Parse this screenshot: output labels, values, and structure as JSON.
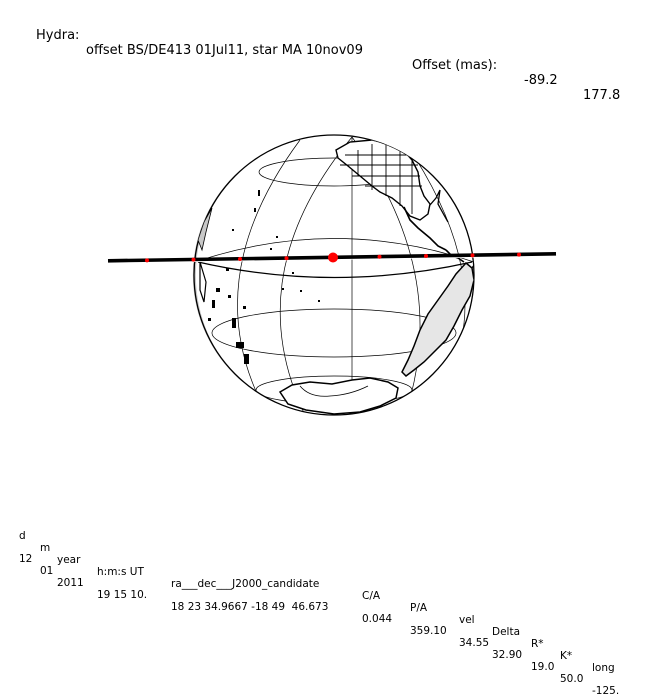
{
  "title": {
    "prefix": "Hydra:",
    "description": "offset BS/DE413 01Jul11, star MA 10nov09",
    "offset_label": "Offset (mas):",
    "offset_ra": "-89.2",
    "offset_dec": "177.8"
  },
  "table": {
    "headers": [
      "d",
      "m",
      "year",
      "h:m:s UT",
      "ra___dec___J2000_candidate",
      "C/A",
      "P/A",
      "vel",
      "Delta",
      "R*",
      "K*",
      "long"
    ],
    "values": [
      "12",
      "01",
      "2011",
      "19 15 10.",
      "18 23 34.9667 -18 49  46.673",
      "0.044",
      "359.10",
      "34.55",
      "32.90",
      "19.0",
      "50.0",
      "-125."
    ]
  },
  "colors": {
    "track": "#000000",
    "marker": "#ff0000",
    "globe_line": "#000000",
    "shade": "#c8c8c8"
  },
  "diagram": {
    "track_markers": 9,
    "center_marker_index": 4
  }
}
